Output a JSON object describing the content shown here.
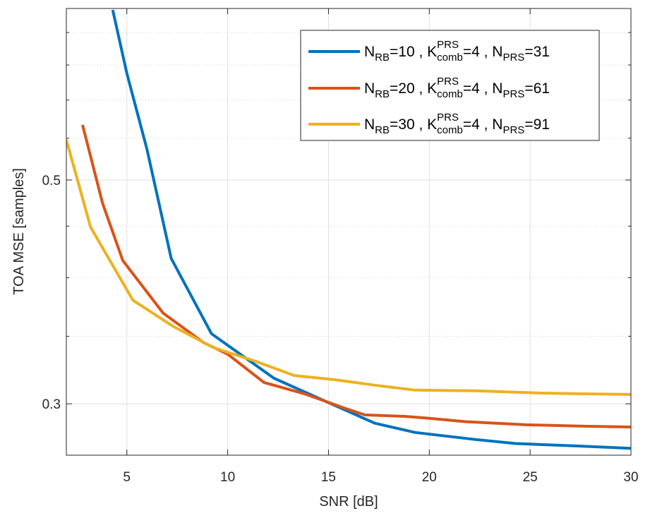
{
  "chart_data": {
    "type": "line",
    "title": "",
    "xlabel": "SNR [dB]",
    "ylabel": "TOA MSE [samples]",
    "xlim": [
      2,
      30
    ],
    "ylim": [
      0.2668,
      0.7395
    ],
    "yscale": "log",
    "grid": true,
    "minor_grid_y": true,
    "legend_position": "top-right",
    "x_ticks": [
      5,
      10,
      15,
      20,
      25,
      30
    ],
    "x_tick_labels": [
      "5",
      "10",
      "15",
      "20",
      "25",
      "30"
    ],
    "y_ticks": [
      0.3,
      0.5
    ],
    "y_tick_labels": [
      "0.3",
      "0.5"
    ],
    "y_minor_ticks": [
      0.35,
      0.4,
      0.45,
      0.55,
      0.6,
      0.65,
      0.7
    ],
    "series": [
      {
        "name": "N_RB=10 , K_comb^PRS=4 , N_PRS=31",
        "color": "#0072BD",
        "legend": {
          "main": "N",
          "sub1": "RB",
          "mid1": "=10 , K",
          "sup": "PRS",
          "sub2": "comb",
          "mid2": "=4 , N",
          "sub3": "PRS",
          "end": "=31"
        },
        "x": [
          4.3,
          5.0,
          6.0,
          7.2,
          9.2,
          12.3,
          15.3,
          17.3,
          19.3,
          22.3,
          24.3,
          27.3,
          30.0
        ],
        "y": [
          0.737,
          0.638,
          0.536,
          0.418,
          0.352,
          0.318,
          0.299,
          0.287,
          0.281,
          0.2765,
          0.274,
          0.2725,
          0.271
        ]
      },
      {
        "name": "N_RB=20 , K_comb^PRS=4 , N_PRS=61",
        "color": "#D95319",
        "legend": {
          "main": "N",
          "sub1": "RB",
          "mid1": "=20 , K",
          "sup": "PRS",
          "sub2": "comb",
          "mid2": "=4 , N",
          "sub3": "PRS",
          "end": "=61"
        },
        "x": [
          2.8,
          3.8,
          4.8,
          6.8,
          8.8,
          10.0,
          11.8,
          13.8,
          15.8,
          16.8,
          18.8,
          19.8,
          21.8,
          24.8,
          27.8,
          30.0
        ],
        "y": [
          0.567,
          0.474,
          0.416,
          0.369,
          0.345,
          0.336,
          0.315,
          0.307,
          0.297,
          0.2925,
          0.2915,
          0.2905,
          0.288,
          0.286,
          0.285,
          0.2845
        ]
      },
      {
        "name": "N_RB=30 , K_comb^PRS=4 , N_PRS=91",
        "color": "#EDB120",
        "legend": {
          "main": "N",
          "sub1": "RB",
          "mid1": "=30 , K",
          "sup": "PRS",
          "sub2": "comb",
          "mid2": "=4 , N",
          "sub3": "PRS",
          "end": "=91"
        },
        "x": [
          2.0,
          3.2,
          5.3,
          7.3,
          9.3,
          11.3,
          13.3,
          15.3,
          17.3,
          19.3,
          22.3,
          25.3,
          27.3,
          30.0
        ],
        "y": [
          0.548,
          0.449,
          0.38,
          0.358,
          0.341,
          0.331,
          0.32,
          0.317,
          0.313,
          0.3095,
          0.309,
          0.3075,
          0.307,
          0.3065
        ]
      }
    ]
  }
}
